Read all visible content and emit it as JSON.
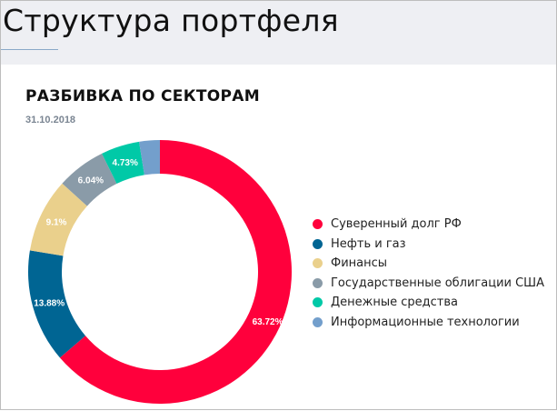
{
  "header": {
    "title": "Структура портфеля"
  },
  "section": {
    "title": "РАЗБИВКА ПО СЕКТОРАМ",
    "date": "31.10.2018"
  },
  "chart_data": {
    "type": "pie",
    "variant": "donut",
    "title": "РАЗБИВКА ПО СЕКТОРАМ",
    "subtitle": "31.10.2018",
    "legend_position": "right",
    "categories": [
      "Суверенный долг РФ",
      "Нефть и газ",
      "Финансы",
      "Государственные облигации США",
      "Денежные средства",
      "Информационные технологии"
    ],
    "values": [
      63.72,
      13.88,
      9.1,
      6.04,
      4.73,
      2.53
    ],
    "labels": [
      "63.72%",
      "13.88%",
      "9.1%",
      "6.04%",
      "4.73%",
      ""
    ],
    "colors": [
      "#ff003c",
      "#006593",
      "#ead08c",
      "#8a9ba8",
      "#00c9a7",
      "#739fcc"
    ]
  },
  "legend": {
    "items": [
      {
        "label": "Суверенный долг РФ",
        "color": "#ff003c"
      },
      {
        "label": "Нефть и газ",
        "color": "#006593"
      },
      {
        "label": "Финансы",
        "color": "#ead08c"
      },
      {
        "label": "Государственные облигации США",
        "color": "#8a9ba8"
      },
      {
        "label": "Денежные средства",
        "color": "#00c9a7"
      },
      {
        "label": "Информационные технологии",
        "color": "#739fcc"
      }
    ]
  }
}
